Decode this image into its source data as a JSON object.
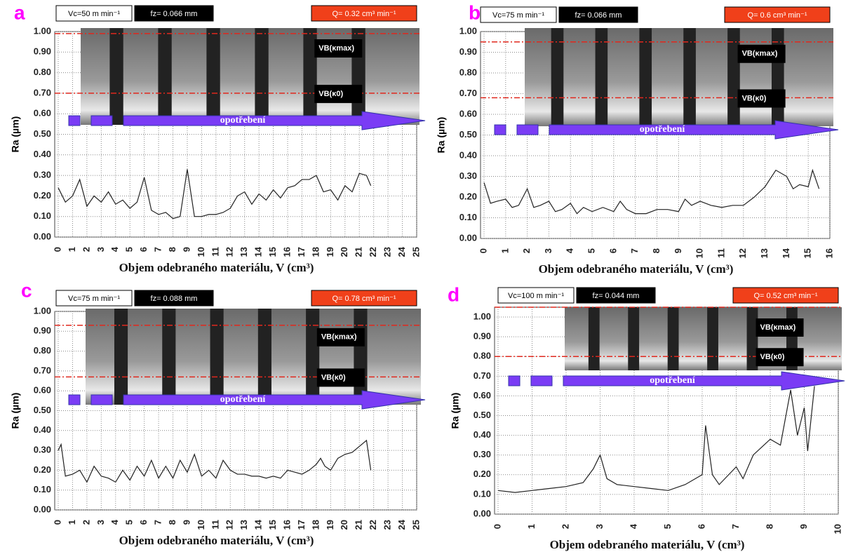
{
  "chart_data": [
    {
      "type": "line",
      "panel": "a",
      "header": [
        "Vc=50 m min⁻¹",
        "fz= 0.066 mm",
        "Q= 0.32 cm³ min⁻¹"
      ],
      "xlabel": "Objem odebraného materiálu, V (cm³)",
      "ylabel": "Ra (µm)",
      "annotations": {
        "arrow": "opotřebení",
        "vb_max": "VB(κmax)",
        "vb_0": "VB(κ0)"
      },
      "ref_lines": [
        0.99,
        0.7
      ],
      "ref_color": "#e0281e",
      "xlim": [
        0,
        25
      ],
      "xticks": [
        0,
        1,
        2,
        3,
        4,
        5,
        6,
        7,
        8,
        9,
        10,
        11,
        12,
        13,
        14,
        15,
        16,
        17,
        18,
        19,
        20,
        21,
        22,
        23,
        24,
        25
      ],
      "ylim": [
        0,
        1
      ],
      "yticks": [
        {
          "value": 0,
          "label": "0.00"
        },
        {
          "value": 0.1,
          "label": "0.10"
        },
        {
          "value": 0.2,
          "label": "0.20"
        },
        {
          "value": 0.3,
          "label": "0.30"
        },
        {
          "value": 0.4,
          "label": "0.40"
        },
        {
          "value": 0.5,
          "label": "0.50"
        },
        {
          "value": 0.6,
          "label": "0.60"
        },
        {
          "value": 0.7,
          "label": "0.70"
        },
        {
          "value": 0.8,
          "label": "0.80"
        },
        {
          "value": 0.9,
          "label": "0.90"
        },
        {
          "value": 1,
          "label": "1.00"
        }
      ],
      "grid": true,
      "series": [
        {
          "color": "#222",
          "x": [
            0,
            0.5,
            1,
            1.5,
            2,
            2.5,
            3,
            3.5,
            4,
            4.5,
            5,
            5.5,
            6,
            6.5,
            7,
            7.5,
            8,
            8.5,
            9,
            9.5,
            10,
            10.5,
            11,
            11.5,
            12,
            12.5,
            13,
            13.5,
            14,
            14.5,
            15,
            15.5,
            16,
            16.5,
            17,
            17.5,
            18,
            18.5,
            19,
            19.5,
            20,
            20.5,
            21,
            21.5,
            21.8
          ],
          "values": [
            0.24,
            0.17,
            0.2,
            0.28,
            0.15,
            0.2,
            0.17,
            0.22,
            0.16,
            0.18,
            0.14,
            0.17,
            0.29,
            0.13,
            0.11,
            0.12,
            0.09,
            0.1,
            0.33,
            0.1,
            0.1,
            0.11,
            0.11,
            0.12,
            0.14,
            0.2,
            0.22,
            0.16,
            0.21,
            0.18,
            0.23,
            0.19,
            0.24,
            0.25,
            0.28,
            0.28,
            0.3,
            0.22,
            0.23,
            0.18,
            0.25,
            0.22,
            0.31,
            0.3,
            0.25
          ]
        }
      ]
    },
    {
      "type": "line",
      "panel": "b",
      "header": [
        "Vc=75 m min⁻¹",
        "fz= 0.066 mm",
        "Q= 0.6 cm³ min⁻¹"
      ],
      "xlabel": "Objem odebraného materiálu, V (cm³)",
      "ylabel": "Ra (µm)",
      "annotations": {
        "arrow": "opotřebení",
        "vb_max": "VB(κmax)",
        "vb_0": "VB(κ0)"
      },
      "ref_lines": [
        0.95,
        0.68
      ],
      "ref_color": "#e0281e",
      "xlim": [
        0,
        16
      ],
      "xticks": [
        0,
        1,
        2,
        3,
        4,
        5,
        6,
        7,
        8,
        9,
        10,
        11,
        12,
        13,
        14,
        15,
        16
      ],
      "ylim": [
        0,
        1
      ],
      "yticks": [
        {
          "value": 0,
          "label": "0.00"
        },
        {
          "value": 0.1,
          "label": "0.10"
        },
        {
          "value": 0.2,
          "label": "0.20"
        },
        {
          "value": 0.3,
          "label": "0.30"
        },
        {
          "value": 0.4,
          "label": "0.40"
        },
        {
          "value": 0.5,
          "label": "0.50"
        },
        {
          "value": 0.6,
          "label": "0.60"
        },
        {
          "value": 0.7,
          "label": "0.70"
        },
        {
          "value": 0.8,
          "label": "0.80"
        },
        {
          "value": 0.9,
          "label": "0.90"
        },
        {
          "value": 1,
          "label": "1.00"
        }
      ],
      "grid": true,
      "series": [
        {
          "color": "#222",
          "x": [
            0,
            0.3,
            0.6,
            1,
            1.3,
            1.6,
            2,
            2.3,
            2.6,
            3,
            3.3,
            3.6,
            4,
            4.3,
            4.6,
            5,
            5.5,
            6,
            6.3,
            6.6,
            7,
            7.5,
            8,
            8.5,
            9,
            9.3,
            9.6,
            10,
            10.5,
            11,
            11.5,
            12,
            12.5,
            13,
            13.5,
            14,
            14.3,
            14.6,
            15,
            15.2,
            15.5
          ],
          "values": [
            0.27,
            0.17,
            0.18,
            0.19,
            0.15,
            0.16,
            0.24,
            0.15,
            0.16,
            0.18,
            0.13,
            0.14,
            0.17,
            0.12,
            0.15,
            0.13,
            0.15,
            0.13,
            0.18,
            0.14,
            0.12,
            0.12,
            0.14,
            0.14,
            0.13,
            0.19,
            0.16,
            0.18,
            0.16,
            0.15,
            0.16,
            0.16,
            0.2,
            0.25,
            0.33,
            0.3,
            0.24,
            0.26,
            0.25,
            0.33,
            0.24
          ]
        }
      ]
    },
    {
      "type": "line",
      "panel": "c",
      "header": [
        "Vc=75 m min⁻¹",
        "fz= 0.088 mm",
        "Q= 0.78 cm³ min⁻¹"
      ],
      "xlabel": "Objem odebraného materiálu, V (cm³)",
      "ylabel": "Ra (µm)",
      "annotations": {
        "arrow": "opotřebení",
        "vb_max": "VB(κmax)",
        "vb_0": "VB(κ0)"
      },
      "ref_lines": [
        0.93,
        0.67
      ],
      "ref_color": "#e0281e",
      "xlim": [
        0,
        25
      ],
      "xticks": [
        0,
        1,
        2,
        3,
        4,
        5,
        6,
        7,
        8,
        9,
        10,
        11,
        12,
        13,
        14,
        15,
        16,
        17,
        18,
        19,
        20,
        21,
        22,
        23,
        24,
        25
      ],
      "ylim": [
        0,
        1
      ],
      "yticks": [
        {
          "value": 0,
          "label": "0.00"
        },
        {
          "value": 0.1,
          "label": "0.10"
        },
        {
          "value": 0.2,
          "label": "0.20"
        },
        {
          "value": 0.3,
          "label": "0.30"
        },
        {
          "value": 0.4,
          "label": "0.40"
        },
        {
          "value": 0.5,
          "label": "0.50"
        },
        {
          "value": 0.6,
          "label": "0.60"
        },
        {
          "value": 0.7,
          "label": "0.70"
        },
        {
          "value": 0.8,
          "label": "0.80"
        },
        {
          "value": 0.9,
          "label": "0.90"
        },
        {
          "value": 1,
          "label": "1.00"
        }
      ],
      "grid": true,
      "series": [
        {
          "color": "#222",
          "x": [
            0,
            0.2,
            0.5,
            1,
            1.5,
            2,
            2.5,
            3,
            3.5,
            4,
            4.5,
            5,
            5.5,
            6,
            6.5,
            7,
            7.5,
            8,
            8.5,
            9,
            9.5,
            10,
            10.5,
            11,
            11.5,
            12,
            12.5,
            13,
            13.5,
            14,
            14.5,
            15,
            15.5,
            16,
            16.5,
            17,
            17.5,
            18,
            18.3,
            18.6,
            19,
            19.5,
            20,
            20.5,
            21,
            21.5,
            21.8
          ],
          "values": [
            0.3,
            0.33,
            0.17,
            0.18,
            0.2,
            0.14,
            0.22,
            0.17,
            0.16,
            0.14,
            0.2,
            0.15,
            0.22,
            0.17,
            0.25,
            0.16,
            0.22,
            0.16,
            0.25,
            0.19,
            0.28,
            0.17,
            0.2,
            0.16,
            0.25,
            0.2,
            0.18,
            0.18,
            0.17,
            0.17,
            0.16,
            0.17,
            0.16,
            0.2,
            0.19,
            0.18,
            0.2,
            0.23,
            0.26,
            0.22,
            0.2,
            0.26,
            0.28,
            0.29,
            0.32,
            0.35,
            0.2
          ]
        }
      ]
    },
    {
      "type": "line",
      "panel": "d",
      "header": [
        "Vc=100 m min⁻¹",
        "fz= 0.044 mm",
        "Q= 0.52 cm³ min⁻¹"
      ],
      "xlabel": "Objem odebraného materiálu, V (cm³)",
      "ylabel": "Ra (µm)",
      "annotations": {
        "arrow": "opotřebení",
        "vb_max": "VB(κmax)",
        "vb_0": "VB(κ0)"
      },
      "ref_lines": [
        1.05,
        0.8
      ],
      "ref_color": "#e0281e",
      "xlim": [
        0,
        10
      ],
      "xticks": [
        0,
        1,
        2,
        3,
        4,
        5,
        6,
        7,
        8,
        9,
        10
      ],
      "ylim": [
        0,
        1.05
      ],
      "yticks": [
        {
          "value": 0,
          "label": "0.00"
        },
        {
          "value": 0.1,
          "label": "0.10"
        },
        {
          "value": 0.2,
          "label": "0.20"
        },
        {
          "value": 0.3,
          "label": "0.30"
        },
        {
          "value": 0.4,
          "label": "0.40"
        },
        {
          "value": 0.5,
          "label": "0.50"
        },
        {
          "value": 0.6,
          "label": "0.60"
        },
        {
          "value": 0.7,
          "label": "0.70"
        },
        {
          "value": 0.8,
          "label": "0.80"
        },
        {
          "value": 0.9,
          "label": "0.90"
        },
        {
          "value": 1,
          "label": "1.00"
        }
      ],
      "grid": true,
      "series": [
        {
          "color": "#222",
          "x": [
            0,
            0.5,
            1,
            1.5,
            2,
            2.5,
            2.8,
            3,
            3.2,
            3.5,
            4,
            4.5,
            5,
            5.5,
            6,
            6.1,
            6.3,
            6.5,
            7,
            7.2,
            7.5,
            8,
            8.3,
            8.6,
            8.8,
            9,
            9.1,
            9.3
          ],
          "values": [
            0.12,
            0.11,
            0.12,
            0.13,
            0.14,
            0.16,
            0.23,
            0.3,
            0.18,
            0.15,
            0.14,
            0.13,
            0.12,
            0.15,
            0.2,
            0.45,
            0.2,
            0.15,
            0.24,
            0.18,
            0.3,
            0.38,
            0.35,
            0.63,
            0.4,
            0.54,
            0.32,
            0.65
          ]
        }
      ]
    }
  ]
}
